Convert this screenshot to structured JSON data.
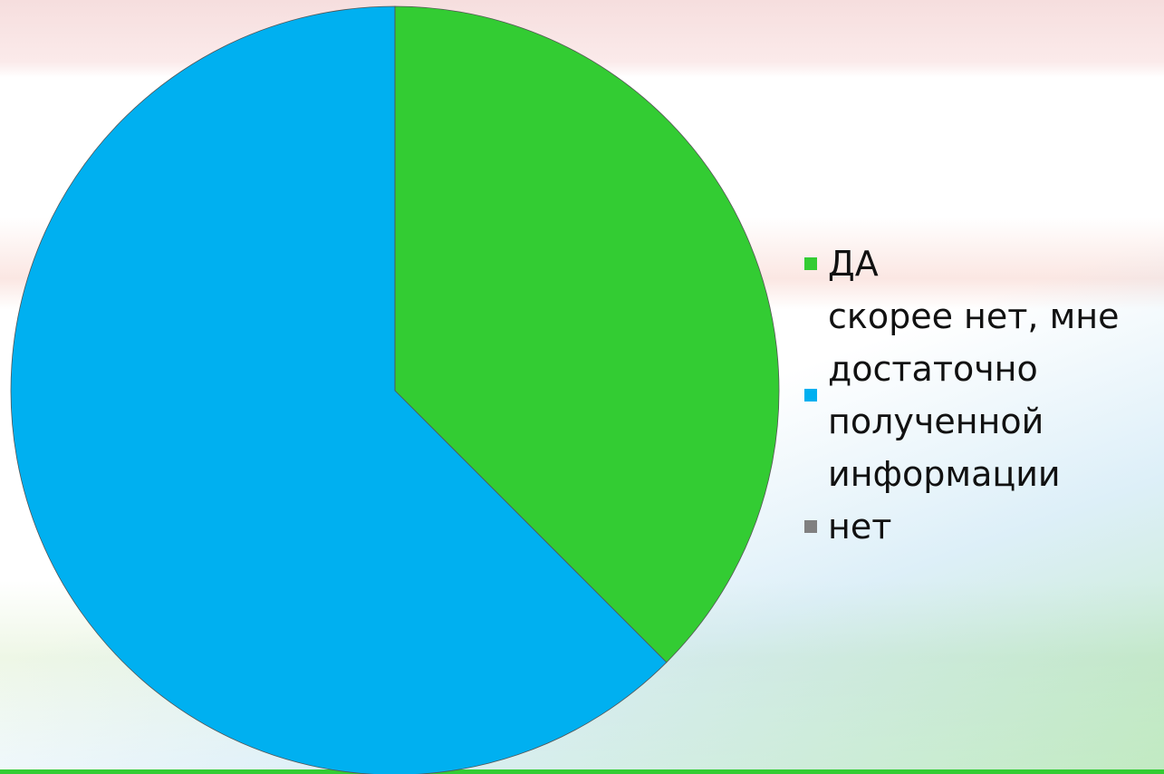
{
  "chart_data": {
    "type": "pie",
    "categories": [
      "ДА",
      "скорее нет, мне достаточно полученной информации",
      "нет"
    ],
    "values": [
      37.5,
      62.5,
      0
    ],
    "colors": [
      "#33cc33",
      "#00b0f0",
      "#808080"
    ],
    "legend": "right"
  }
}
